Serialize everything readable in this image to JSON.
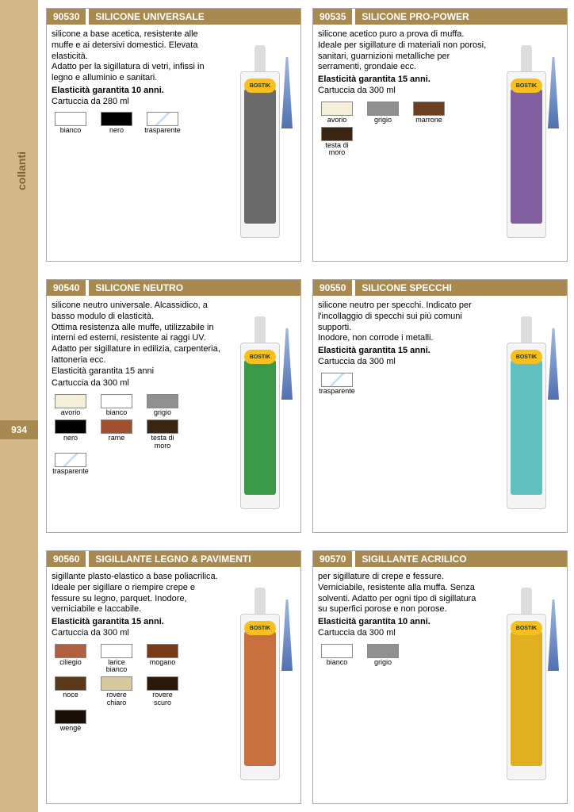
{
  "sidebar": {
    "label": "collanti",
    "page_num": "934"
  },
  "colors": {
    "header_bg": "#a88a50",
    "sidebar_bg": "#d4b88a"
  },
  "products": [
    {
      "code": "90530",
      "title": "SILICONE UNIVERSALE",
      "desc": "silicone a base acetica, resistente alle muffe e ai detersivi domestici. Elevata elasticità.\nAdatto per la sigillatura di vetri, infissi in legno e alluminio e sanitari.",
      "bold": "Elasticità garantita 10 anni.",
      "post": "Cartuccia da 280 ml",
      "label_color": "#6a6a6a",
      "swatches": [
        {
          "name": "bianco",
          "color": "#ffffff"
        },
        {
          "name": "nero",
          "color": "#000000"
        },
        {
          "name": "trasparente",
          "color": "trasparente"
        }
      ]
    },
    {
      "code": "90535",
      "title": "SILICONE PRO-POWER",
      "desc": "silicone acetico puro a prova di muffa. Ideale per sigillature di materiali non porosi, sanitari, guarnizioni metalliche per serramenti, grondaie ecc.",
      "bold": "Elasticità garantita 15 anni.",
      "post": "Cartuccia da 300 ml",
      "label_color": "#8060a0",
      "swatches": [
        {
          "name": "avorio",
          "color": "#f5eed8"
        },
        {
          "name": "grigio",
          "color": "#909090"
        },
        {
          "name": "marrone",
          "color": "#6b4020"
        },
        {
          "name": "testa di moro",
          "color": "#3a2512"
        }
      ]
    },
    {
      "code": "90540",
      "title": "SILICONE NEUTRO",
      "desc": "silicone neutro universale. Alcassidico, a basso modulo di elasticità.\nOttima resistenza alle muffe, utilizzabile in interni ed esterni, resistente ai raggi UV.\nAdatto per sigillature in edilizia, carpenteria, lattoneria ecc.\nElasticità garantita 15 anni",
      "bold": "",
      "post": "Cartuccia da 300 ml",
      "label_color": "#3a9a4a",
      "swatches": [
        {
          "name": "avorio",
          "color": "#f5eed8"
        },
        {
          "name": "bianco",
          "color": "#ffffff"
        },
        {
          "name": "grigio",
          "color": "#909090"
        },
        {
          "name": "nero",
          "color": "#000000"
        },
        {
          "name": "rame",
          "color": "#a05030"
        },
        {
          "name": "testa di moro",
          "color": "#3a2512"
        },
        {
          "name": "trasparente",
          "color": "trasparente"
        }
      ]
    },
    {
      "code": "90550",
      "title": "SILICONE SPECCHI",
      "desc": "silicone neutro per specchi. Indicato per l'incollaggio di specchi sui più comuni supporti.\nInodore, non corrode i metalli.",
      "bold": "Elasticità garantita 15 anni.",
      "post": "Cartuccia da 300 ml",
      "label_color": "#60c0c0",
      "swatches": [
        {
          "name": "trasparente",
          "color": "trasparente"
        }
      ]
    },
    {
      "code": "90560",
      "title": "SIGILLANTE LEGNO & PAVIMENTI",
      "desc": "sigillante plasto-elastico a base poliacrilica. Ideale per sigillare o riempire crepe e fessure su legno, parquet. Inodore, verniciabile e laccabile.",
      "bold": "Elasticità garantita 15 anni.",
      "post": "Cartuccia da 300 ml",
      "label_color": "#c87040",
      "swatches": [
        {
          "name": "ciliegio",
          "color": "#b06040"
        },
        {
          "name": "larice bianco",
          "color": "#ffffff"
        },
        {
          "name": "mogano",
          "color": "#7a3a1a"
        },
        {
          "name": "noce",
          "color": "#5a3a1a"
        },
        {
          "name": "rovere chiaro",
          "color": "#d8c8a0"
        },
        {
          "name": "rovere scuro",
          "color": "#2a1a0a"
        },
        {
          "name": "wengè",
          "color": "#1a1008"
        }
      ]
    },
    {
      "code": "90570",
      "title": "SIGILLANTE ACRILICO",
      "desc": "per sigillature di crepe e fessure. Verniciabile, resistente alla muffa. Senza solventi. Adatto per ogni tipo di sigillatura su superfici porose e non porose.",
      "bold": "Elasticità garantita 10 anni.",
      "post": "Cartuccia da 300 ml",
      "label_color": "#e0b020",
      "swatches": [
        {
          "name": "bianco",
          "color": "#ffffff"
        },
        {
          "name": "grigio",
          "color": "#909090"
        }
      ]
    }
  ]
}
